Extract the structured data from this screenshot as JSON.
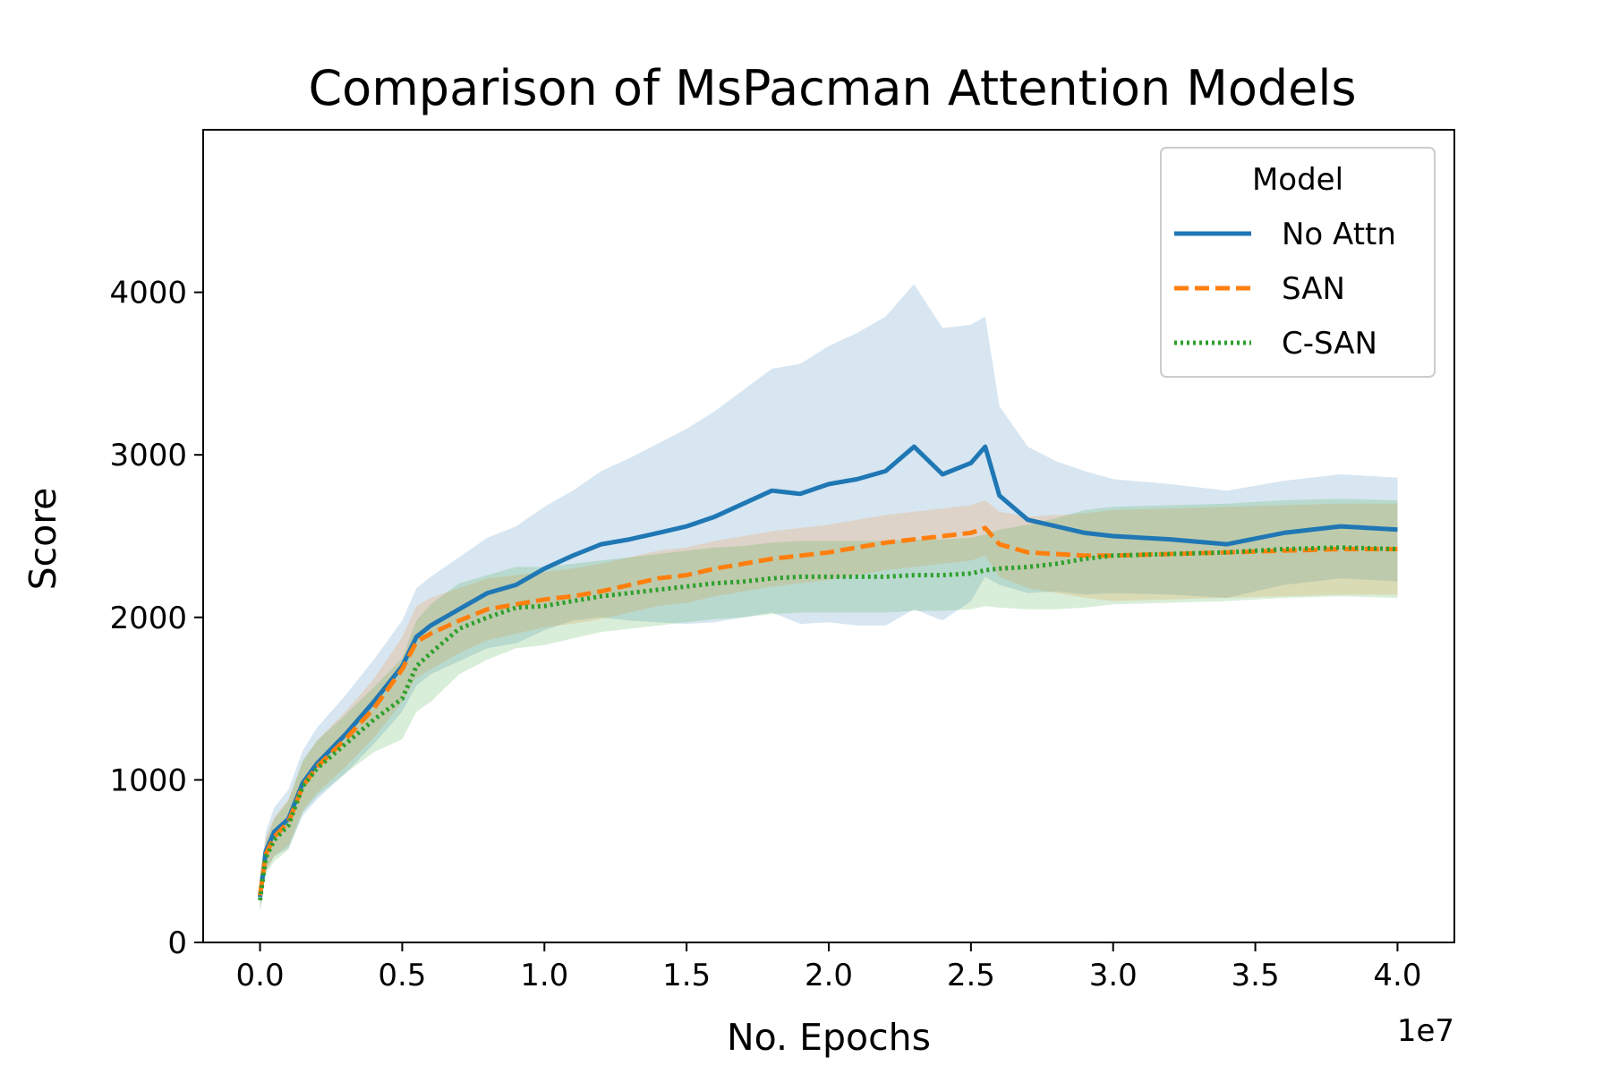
{
  "chart_data": {
    "type": "line",
    "title": "Comparison of MsPacman Attention Models",
    "xlabel": "No. Epochs",
    "ylabel": "Score",
    "x_offset_label": "1e7",
    "xlim": [
      -0.2,
      4.2
    ],
    "ylim": [
      0,
      5000
    ],
    "x_ticks": [
      0.0,
      0.5,
      1.0,
      1.5,
      2.0,
      2.5,
      3.0,
      3.5,
      4.0
    ],
    "x_tick_labels": [
      "0.0",
      "0.5",
      "1.0",
      "1.5",
      "2.0",
      "2.5",
      "3.0",
      "3.5",
      "4.0"
    ],
    "y_ticks": [
      0,
      1000,
      2000,
      3000,
      4000
    ],
    "y_tick_labels": [
      "0",
      "1000",
      "2000",
      "3000",
      "4000"
    ],
    "grid": false,
    "legend": {
      "title": "Model",
      "placement": "top-right"
    },
    "x": [
      0.0,
      0.02,
      0.05,
      0.1,
      0.15,
      0.2,
      0.3,
      0.4,
      0.5,
      0.55,
      0.6,
      0.7,
      0.8,
      0.9,
      1.0,
      1.1,
      1.2,
      1.3,
      1.4,
      1.5,
      1.6,
      1.7,
      1.8,
      1.9,
      2.0,
      2.1,
      2.2,
      2.3,
      2.4,
      2.5,
      2.55,
      2.6,
      2.7,
      2.8,
      2.9,
      3.0,
      3.2,
      3.4,
      3.6,
      3.8,
      4.0
    ],
    "series": [
      {
        "name": "No Attn",
        "color": "#1f77b4",
        "dash": "solid",
        "values": [
          280,
          560,
          680,
          760,
          980,
          1100,
          1280,
          1480,
          1700,
          1880,
          1950,
          2050,
          2150,
          2200,
          2300,
          2380,
          2450,
          2480,
          2520,
          2560,
          2620,
          2700,
          2780,
          2760,
          2820,
          2850,
          2900,
          3050,
          2880,
          2950,
          3050,
          2750,
          2600,
          2560,
          2520,
          2500,
          2480,
          2450,
          2520,
          2560,
          2540
        ],
        "band_half_width": [
          80,
          120,
          150,
          180,
          200,
          220,
          240,
          260,
          280,
          300,
          300,
          320,
          340,
          360,
          380,
          400,
          450,
          500,
          550,
          600,
          650,
          700,
          750,
          800,
          850,
          900,
          950,
          1000,
          900,
          850,
          800,
          550,
          450,
          400,
          380,
          350,
          340,
          330,
          320,
          320,
          320
        ]
      },
      {
        "name": "SAN",
        "color": "#ff7f0e",
        "dash": "dashed",
        "values": [
          290,
          540,
          650,
          740,
          960,
          1080,
          1250,
          1440,
          1680,
          1850,
          1900,
          1980,
          2050,
          2080,
          2110,
          2130,
          2160,
          2200,
          2240,
          2260,
          2300,
          2330,
          2360,
          2380,
          2400,
          2430,
          2460,
          2480,
          2500,
          2520,
          2550,
          2450,
          2400,
          2390,
          2380,
          2380,
          2390,
          2400,
          2410,
          2420,
          2420
        ],
        "band_half_width": [
          80,
          100,
          120,
          140,
          150,
          160,
          170,
          180,
          200,
          220,
          220,
          200,
          190,
          180,
          170,
          170,
          170,
          170,
          170,
          170,
          170,
          170,
          170,
          170,
          170,
          170,
          170,
          170,
          170,
          170,
          170,
          200,
          220,
          240,
          260,
          280,
          280,
          280,
          280,
          280,
          280
        ]
      },
      {
        "name": "C-SAN",
        "color": "#2ca02c",
        "dash": "dotted",
        "values": [
          260,
          520,
          630,
          720,
          960,
          1070,
          1220,
          1370,
          1500,
          1700,
          1780,
          1930,
          2000,
          2060,
          2070,
          2100,
          2130,
          2150,
          2170,
          2190,
          2210,
          2220,
          2240,
          2250,
          2250,
          2250,
          2250,
          2260,
          2260,
          2270,
          2290,
          2300,
          2310,
          2330,
          2360,
          2380,
          2390,
          2400,
          2420,
          2430,
          2420
        ],
        "band_half_width": [
          80,
          100,
          130,
          150,
          160,
          170,
          180,
          200,
          250,
          280,
          300,
          280,
          260,
          250,
          240,
          230,
          220,
          220,
          220,
          220,
          220,
          220,
          220,
          220,
          220,
          220,
          220,
          220,
          220,
          220,
          220,
          240,
          260,
          280,
          300,
          300,
          300,
          300,
          300,
          300,
          300
        ]
      }
    ]
  }
}
